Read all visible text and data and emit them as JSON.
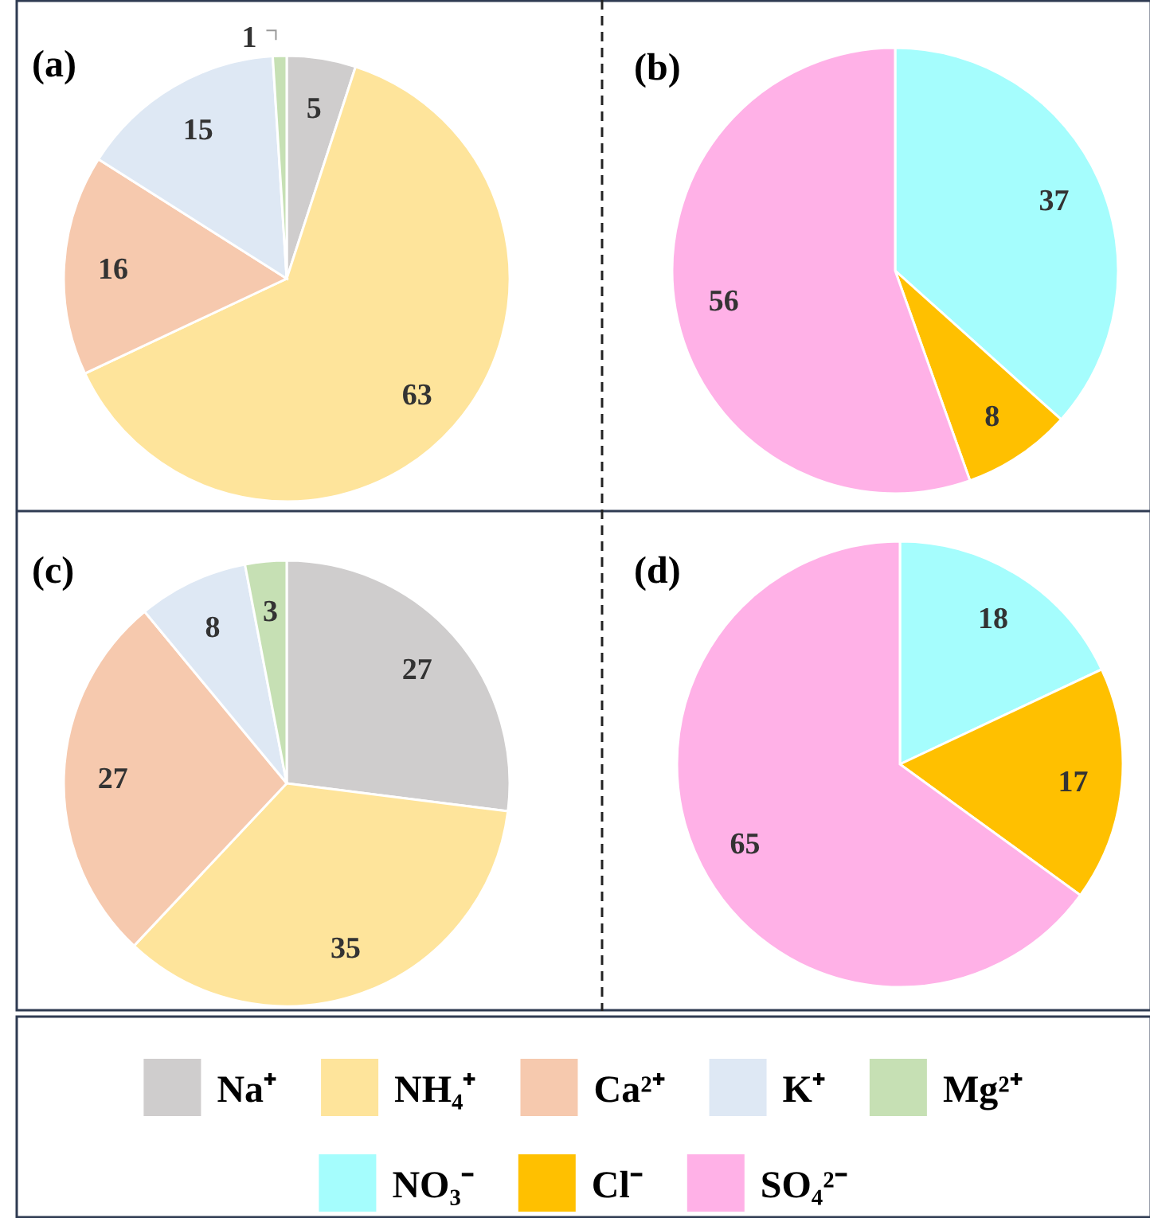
{
  "chart_data": [
    {
      "type": "pie",
      "title": "(a)",
      "categories": [
        "Na⁺",
        "NH₄⁺",
        "Ca²⁺",
        "K⁺",
        "Mg²⁺"
      ],
      "values": [
        5,
        63,
        16,
        15,
        1
      ],
      "colors": [
        "#cfcdcd",
        "#fee49b",
        "#f6c9ae",
        "#dee8f4",
        "#c6e0b4"
      ],
      "data_labels": true,
      "legend": "bottom"
    },
    {
      "type": "pie",
      "title": "(b)",
      "categories": [
        "NO₃⁻",
        "Cl⁻",
        "SO₄²⁻"
      ],
      "values": [
        37,
        8,
        56
      ],
      "colors": [
        "#a5fdfd",
        "#ffc000",
        "#ffb1e7"
      ],
      "data_labels": true,
      "legend": "bottom"
    },
    {
      "type": "pie",
      "title": "(c)",
      "categories": [
        null,
        null,
        null,
        null,
        null
      ],
      "values": [
        27,
        35,
        27,
        8,
        3
      ],
      "colors": [
        "#cfcdcd",
        "#fee49b",
        "#f6c9ae",
        "#dee8f4",
        "#c6e0b4"
      ],
      "data_labels": true
    },
    {
      "type": "pie",
      "title": "(d)",
      "categories": [
        null,
        null,
        null
      ],
      "values": [
        18,
        17,
        65
      ],
      "colors": [
        "#a5fdfd",
        "#ffc000",
        "#ffb1e7"
      ],
      "data_labels": true
    }
  ]
}
